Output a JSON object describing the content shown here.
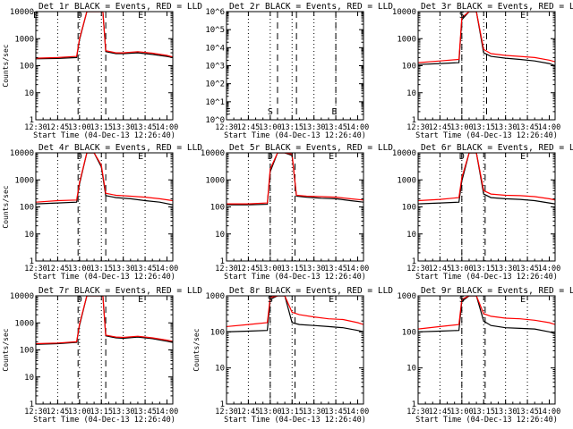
{
  "figure": {
    "background": "#ffffff",
    "colors": {
      "events": "#000000",
      "lld": "#ff0000",
      "axes": "#000000"
    }
  },
  "chart_data": [
    {
      "type": "line",
      "title": "Det 1r BLACK = Events, RED = LLD",
      "xlabel": "Start Time (04-Dec-13 12:26:40)",
      "ylabel": "Counts/sec",
      "yscale": "log",
      "xlim": [
        "12:30",
        "14:04"
      ],
      "ylim": [
        1,
        10000
      ],
      "x_ticks": [
        "12:30",
        "12:45",
        "13:00",
        "13:15",
        "13:30",
        "13:45",
        "14:00"
      ],
      "y_ticks": [
        "1",
        "10",
        "100",
        "1000",
        "10000"
      ],
      "vertical_dashed_lines": [
        "12:59",
        "13:18"
      ],
      "vertical_dotted_lines": [
        "12:45",
        "13:00",
        "13:15",
        "13:30",
        "13:45"
      ],
      "markers": [
        {
          "x": "13:00",
          "label": "D"
        },
        {
          "x": "13:42",
          "label": "E"
        },
        {
          "x": "12:30",
          "label": "E"
        }
      ],
      "series": [
        {
          "name": "Events",
          "color": "#000000",
          "x": [
            "12:30",
            "12:45",
            "12:58",
            "13:00",
            "13:05",
            "13:10",
            "13:16",
            "13:18",
            "13:25",
            "13:30",
            "13:40",
            "13:50",
            "14:00",
            "14:04"
          ],
          "y": [
            180,
            185,
            200,
            900,
            10000,
            10000,
            10000,
            330,
            280,
            280,
            300,
            260,
            220,
            200
          ]
        },
        {
          "name": "LLD",
          "color": "#ff0000",
          "x": [
            "12:30",
            "12:45",
            "12:58",
            "13:00",
            "13:05",
            "13:10",
            "13:16",
            "13:18",
            "13:25",
            "13:30",
            "13:40",
            "13:50",
            "14:00",
            "14:04"
          ],
          "y": [
            190,
            200,
            220,
            1000,
            10000,
            10000,
            10000,
            360,
            300,
            300,
            330,
            290,
            240,
            210
          ]
        }
      ]
    },
    {
      "type": "line",
      "title": "Det 2r BLACK = Events, RED = LLD",
      "xlabel": "Start Time (04-Dec-13 12:26:40)",
      "ylabel": "",
      "yscale": "log",
      "xlim": [
        "12:30",
        "14:04"
      ],
      "ylim": [
        1,
        1000000
      ],
      "x_ticks": [
        "12:30",
        "12:45",
        "13:00",
        "13:15",
        "13:30",
        "13:45",
        "14:00"
      ],
      "y_ticks": [
        "10^0",
        "10^1",
        "10^2",
        "10^3",
        "10^4",
        "10^5",
        "10^6"
      ],
      "vertical_dashed_lines": [
        "13:05",
        "13:18",
        "13:45"
      ],
      "vertical_dotted_lines": [
        "12:45",
        "13:00",
        "13:15",
        "13:30",
        "13:45"
      ],
      "markers": [
        {
          "x": "12:31",
          "label": "E"
        },
        {
          "x": "13:00",
          "label": "S"
        },
        {
          "x": "13:44",
          "label": "E"
        }
      ],
      "series": []
    },
    {
      "type": "line",
      "title": "Det 3r BLACK = Events, RED = LLD",
      "xlabel": "Start Time (04-Dec-13 12:26:40)",
      "ylabel": "",
      "yscale": "log",
      "xlim": [
        "12:30",
        "14:04"
      ],
      "ylim": [
        1,
        10000
      ],
      "x_ticks": [
        "12:30",
        "12:45",
        "13:00",
        "13:15",
        "13:30",
        "13:45",
        "14:00"
      ],
      "y_ticks": [
        "1",
        "10",
        "100",
        "1000",
        "10000"
      ],
      "vertical_dashed_lines": [
        "13:00",
        "13:17"
      ],
      "vertical_dotted_lines": [
        "12:45",
        "13:00",
        "13:15",
        "13:30",
        "13:45"
      ],
      "markers": [
        {
          "x": "13:00",
          "label": "S"
        },
        {
          "x": "13:42",
          "label": "E"
        }
      ],
      "series": [
        {
          "name": "Events",
          "color": "#000000",
          "x": [
            "12:30",
            "12:45",
            "12:58",
            "13:00",
            "13:05",
            "13:10",
            "13:15",
            "13:20",
            "13:30",
            "13:40",
            "13:50",
            "14:00",
            "14:04"
          ],
          "y": [
            110,
            120,
            130,
            5000,
            10000,
            10000,
            300,
            220,
            190,
            170,
            150,
            120,
            100
          ]
        },
        {
          "name": "LLD",
          "color": "#ff0000",
          "x": [
            "12:30",
            "12:45",
            "12:58",
            "13:00",
            "13:05",
            "13:10",
            "13:15",
            "13:20",
            "13:30",
            "13:40",
            "13:50",
            "14:00",
            "14:04"
          ],
          "y": [
            130,
            150,
            170,
            6000,
            10000,
            10000,
            400,
            280,
            240,
            220,
            200,
            160,
            140
          ]
        }
      ]
    },
    {
      "type": "line",
      "title": "Det 4r BLACK = Events, RED = LLD",
      "xlabel": "Start Time (04-Dec-13 12:26:40)",
      "ylabel": "Counts/sec",
      "yscale": "log",
      "xlim": [
        "12:30",
        "14:04"
      ],
      "ylim": [
        1,
        10000
      ],
      "x_ticks": [
        "12:30",
        "12:45",
        "13:00",
        "13:15",
        "13:30",
        "13:45",
        "14:00"
      ],
      "y_ticks": [
        "1",
        "10",
        "100",
        "1000",
        "10000"
      ],
      "vertical_dashed_lines": [
        "12:59",
        "13:18"
      ],
      "vertical_dotted_lines": [
        "12:45",
        "13:00",
        "13:15",
        "13:30",
        "13:45"
      ],
      "markers": [
        {
          "x": "13:00",
          "label": "D"
        },
        {
          "x": "13:42",
          "label": "E"
        }
      ],
      "series": [
        {
          "name": "Events",
          "color": "#000000",
          "x": [
            "12:30",
            "12:45",
            "12:58",
            "13:00",
            "13:05",
            "13:10",
            "13:15",
            "13:18",
            "13:25",
            "13:35",
            "13:45",
            "13:55",
            "14:04"
          ],
          "y": [
            130,
            140,
            150,
            700,
            10000,
            10000,
            3000,
            260,
            220,
            200,
            170,
            150,
            120
          ]
        },
        {
          "name": "LLD",
          "color": "#ff0000",
          "x": [
            "12:30",
            "12:45",
            "12:58",
            "13:00",
            "13:05",
            "13:10",
            "13:15",
            "13:18",
            "13:25",
            "13:35",
            "13:45",
            "13:55",
            "14:04"
          ],
          "y": [
            150,
            170,
            180,
            800,
            10000,
            10000,
            3500,
            320,
            270,
            250,
            230,
            200,
            170
          ]
        }
      ]
    },
    {
      "type": "line",
      "title": "Det 5r BLACK = Events, RED = LLD",
      "xlabel": "Start Time (04-Dec-13 12:26:40)",
      "ylabel": "",
      "yscale": "log",
      "xlim": [
        "12:30",
        "14:04"
      ],
      "ylim": [
        1,
        10000
      ],
      "x_ticks": [
        "12:30",
        "12:45",
        "13:00",
        "13:15",
        "13:30",
        "13:45",
        "14:00"
      ],
      "y_ticks": [
        "1",
        "10",
        "100",
        "1000",
        "10000"
      ],
      "vertical_dashed_lines": [
        "13:00",
        "13:17"
      ],
      "vertical_dotted_lines": [
        "12:45",
        "13:00",
        "13:15",
        "13:30",
        "13:45"
      ],
      "markers": [
        {
          "x": "13:00",
          "label": "D"
        },
        {
          "x": "13:42",
          "label": "E"
        }
      ],
      "series": [
        {
          "name": "Events",
          "color": "#000000",
          "x": [
            "12:30",
            "12:45",
            "12:58",
            "13:00",
            "13:05",
            "13:10",
            "13:15",
            "13:18",
            "13:25",
            "13:35",
            "13:45",
            "13:55",
            "14:04"
          ],
          "y": [
            120,
            120,
            125,
            2000,
            10000,
            10000,
            8000,
            250,
            230,
            210,
            200,
            170,
            150
          ]
        },
        {
          "name": "LLD",
          "color": "#ff0000",
          "x": [
            "12:30",
            "12:45",
            "12:58",
            "13:00",
            "13:05",
            "13:10",
            "13:15",
            "13:18",
            "13:25",
            "13:35",
            "13:45",
            "13:55",
            "14:04"
          ],
          "y": [
            130,
            130,
            140,
            2500,
            10000,
            10000,
            9000,
            270,
            250,
            240,
            230,
            200,
            180
          ]
        }
      ]
    },
    {
      "type": "line",
      "title": "Det 6r BLACK = Events, RED = LLD",
      "xlabel": "Start Time (04-Dec-13 12:26:40)",
      "ylabel": "",
      "yscale": "log",
      "xlim": [
        "12:30",
        "14:04"
      ],
      "ylim": [
        1,
        10000
      ],
      "x_ticks": [
        "12:30",
        "12:45",
        "13:00",
        "13:15",
        "13:30",
        "13:45",
        "14:00"
      ],
      "y_ticks": [
        "1",
        "10",
        "100",
        "1000",
        "10000"
      ],
      "vertical_dashed_lines": [
        "13:00",
        "13:16"
      ],
      "vertical_dotted_lines": [
        "12:45",
        "13:00",
        "13:15",
        "13:30",
        "13:45"
      ],
      "markers": [
        {
          "x": "13:00",
          "label": "D"
        },
        {
          "x": "13:42",
          "label": "E"
        }
      ],
      "series": [
        {
          "name": "Events",
          "color": "#000000",
          "x": [
            "12:30",
            "12:45",
            "12:58",
            "13:00",
            "13:05",
            "13:10",
            "13:15",
            "13:20",
            "13:30",
            "13:40",
            "13:50",
            "14:00",
            "14:04"
          ],
          "y": [
            130,
            140,
            150,
            900,
            10000,
            10000,
            300,
            220,
            200,
            190,
            170,
            140,
            130
          ]
        },
        {
          "name": "LLD",
          "color": "#ff0000",
          "x": [
            "12:30",
            "12:45",
            "12:58",
            "13:00",
            "13:05",
            "13:10",
            "13:15",
            "13:20",
            "13:30",
            "13:40",
            "13:50",
            "14:00",
            "14:04"
          ],
          "y": [
            170,
            190,
            220,
            1200,
            10000,
            10000,
            400,
            300,
            270,
            260,
            240,
            200,
            180
          ]
        }
      ]
    },
    {
      "type": "line",
      "title": "Det 7r BLACK = Events, RED = LLD",
      "xlabel": "Start Time (04-Dec-13 12:26:40)",
      "ylabel": "Counts/sec",
      "yscale": "log",
      "xlim": [
        "12:30",
        "14:04"
      ],
      "ylim": [
        1,
        10000
      ],
      "x_ticks": [
        "12:30",
        "12:45",
        "13:00",
        "13:15",
        "13:30",
        "13:45",
        "14:00"
      ],
      "y_ticks": [
        "1",
        "10",
        "100",
        "1000",
        "10000"
      ],
      "vertical_dashed_lines": [
        "12:59",
        "13:18"
      ],
      "vertical_dotted_lines": [
        "12:45",
        "13:00",
        "13:15",
        "13:30",
        "13:45"
      ],
      "markers": [
        {
          "x": "13:00",
          "label": "D"
        },
        {
          "x": "13:42",
          "label": "E"
        }
      ],
      "series": [
        {
          "name": "Events",
          "color": "#000000",
          "x": [
            "12:30",
            "12:45",
            "12:58",
            "13:00",
            "13:05",
            "13:10",
            "13:16",
            "13:18",
            "13:25",
            "13:30",
            "13:40",
            "13:50",
            "14:00",
            "14:04"
          ],
          "y": [
            160,
            170,
            190,
            800,
            10000,
            10000,
            10000,
            330,
            280,
            270,
            300,
            260,
            210,
            190
          ]
        },
        {
          "name": "LLD",
          "color": "#ff0000",
          "x": [
            "12:30",
            "12:45",
            "12:58",
            "13:00",
            "13:05",
            "13:10",
            "13:16",
            "13:18",
            "13:25",
            "13:30",
            "13:40",
            "13:50",
            "14:00",
            "14:04"
          ],
          "y": [
            170,
            180,
            200,
            900,
            10000,
            10000,
            10000,
            350,
            300,
            290,
            320,
            280,
            230,
            210
          ]
        }
      ]
    },
    {
      "type": "line",
      "title": "Det 8r BLACK = Events, RED = LLD",
      "xlabel": "Start Time (04-Dec-13 12:26:40)",
      "ylabel": "Counts/sec",
      "yscale": "log",
      "xlim": [
        "12:30",
        "14:04"
      ],
      "ylim": [
        1,
        1000
      ],
      "x_ticks": [
        "12:30",
        "12:45",
        "13:00",
        "13:15",
        "13:30",
        "13:45",
        "14:00"
      ],
      "y_ticks": [
        "1",
        "10",
        "100",
        "1000"
      ],
      "vertical_dashed_lines": [
        "13:00",
        "13:17"
      ],
      "vertical_dotted_lines": [
        "12:45",
        "13:00",
        "13:15",
        "13:30",
        "13:45"
      ],
      "markers": [
        {
          "x": "13:00",
          "label": "S"
        },
        {
          "x": "13:42",
          "label": "E"
        }
      ],
      "series": [
        {
          "name": "Events",
          "color": "#000000",
          "x": [
            "12:30",
            "12:45",
            "12:58",
            "13:00",
            "13:05",
            "13:10",
            "13:15",
            "13:20",
            "13:30",
            "13:40",
            "13:50",
            "14:00",
            "14:04"
          ],
          "y": [
            100,
            105,
            110,
            800,
            1000,
            1000,
            180,
            160,
            150,
            140,
            130,
            110,
            100
          ]
        },
        {
          "name": "LLD",
          "color": "#ff0000",
          "x": [
            "12:30",
            "12:45",
            "12:58",
            "13:00",
            "13:05",
            "13:10",
            "13:15",
            "13:20",
            "13:30",
            "13:40",
            "13:50",
            "14:00",
            "14:04"
          ],
          "y": [
            140,
            160,
            180,
            900,
            1000,
            1000,
            350,
            300,
            260,
            230,
            220,
            180,
            160
          ]
        }
      ]
    },
    {
      "type": "line",
      "title": "Det 9r BLACK = Events, RED = LLD",
      "xlabel": "Start Time (04-Dec-13 12:26:40)",
      "ylabel": "",
      "yscale": "log",
      "xlim": [
        "12:30",
        "14:04"
      ],
      "ylim": [
        1,
        1000
      ],
      "x_ticks": [
        "12:30",
        "12:45",
        "13:00",
        "13:15",
        "13:30",
        "13:45",
        "14:00"
      ],
      "y_ticks": [
        "1",
        "10",
        "100",
        "1000"
      ],
      "vertical_dashed_lines": [
        "13:00",
        "13:16"
      ],
      "vertical_dotted_lines": [
        "12:45",
        "13:00",
        "13:15",
        "13:30",
        "13:45"
      ],
      "markers": [
        {
          "x": "13:00",
          "label": "S"
        },
        {
          "x": "13:42",
          "label": "E"
        }
      ],
      "series": [
        {
          "name": "Events",
          "color": "#000000",
          "x": [
            "12:30",
            "12:45",
            "12:58",
            "13:00",
            "13:05",
            "13:10",
            "13:15",
            "13:20",
            "13:30",
            "13:40",
            "13:50",
            "14:00",
            "14:04"
          ],
          "y": [
            100,
            105,
            110,
            700,
            1000,
            1000,
            200,
            150,
            130,
            125,
            120,
            100,
            90
          ]
        },
        {
          "name": "LLD",
          "color": "#ff0000",
          "x": [
            "12:30",
            "12:45",
            "12:58",
            "13:00",
            "13:05",
            "13:10",
            "13:15",
            "13:20",
            "13:30",
            "13:40",
            "13:50",
            "14:00",
            "14:04"
          ],
          "y": [
            120,
            140,
            160,
            800,
            1000,
            1000,
            320,
            270,
            240,
            230,
            210,
            180,
            160
          ]
        }
      ]
    }
  ]
}
